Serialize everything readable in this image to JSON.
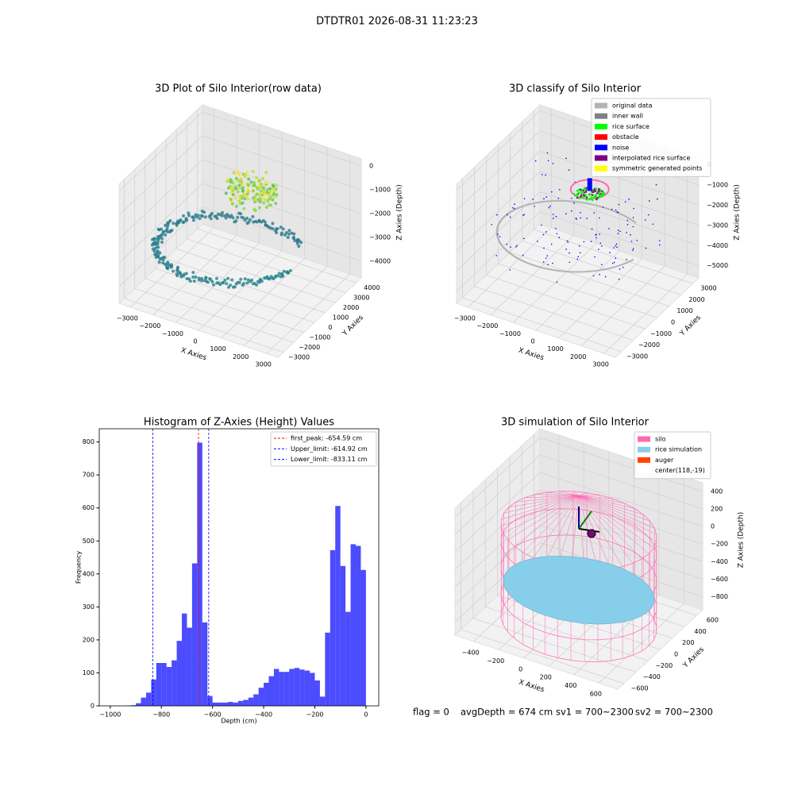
{
  "title": "DTDTR01 2026-08-31 11:23:23",
  "chart_data": [
    {
      "type": "scatter3d",
      "title": "3D Plot of Silo Interior(row data)",
      "xlabel": "X Axies",
      "ylabel": "Y Axies",
      "zlabel": "Z Axies (Depth)",
      "xlim": [
        -3500,
        3500
      ],
      "xticks": [
        {
          "value": -3000,
          "label": "−3000"
        },
        {
          "value": -2000,
          "label": "−2000"
        },
        {
          "value": -1000,
          "label": "−1000"
        },
        0,
        1000,
        2000,
        3000
      ],
      "ylim": [
        -3500,
        4500
      ],
      "yticks": [
        {
          "value": -3000,
          "label": "−3000"
        },
        {
          "value": -2000,
          "label": "−2000"
        },
        {
          "value": -1000,
          "label": "−1000"
        },
        0,
        1000,
        2000,
        3000,
        4000
      ],
      "zlim": [
        -4700,
        300
      ],
      "zticks": [
        {
          "value": -4000,
          "label": "−4000"
        },
        {
          "value": -3000,
          "label": "−3000"
        },
        {
          "value": -2000,
          "label": "−2000"
        },
        {
          "value": -1000,
          "label": "−1000"
        },
        0
      ]
    },
    {
      "type": "classify3d",
      "title": "3D classify of Silo Interior",
      "xlabel": "X Axies",
      "ylabel": "Y Axies",
      "zlabel": "Z Axies (Depth)",
      "xlim": [
        -3500,
        3500
      ],
      "xticks": [
        {
          "value": -3000,
          "label": "−3000"
        },
        {
          "value": -2000,
          "label": "−2000"
        },
        {
          "value": -1000,
          "label": "−1000"
        },
        0,
        1000,
        2000,
        3000
      ],
      "ylim": [
        -3500,
        3500
      ],
      "yticks": [
        {
          "value": -3000,
          "label": "−3000"
        },
        {
          "value": -2000,
          "label": "−2000"
        },
        {
          "value": -1000,
          "label": "−1000"
        },
        0,
        1000,
        2000,
        3000
      ],
      "zlim": [
        -5600,
        300
      ],
      "zticks": [
        {
          "value": -5000,
          "label": "−5000"
        },
        {
          "value": -4000,
          "label": "−4000"
        },
        {
          "value": -3000,
          "label": "−3000"
        },
        {
          "value": -2000,
          "label": "−2000"
        },
        {
          "value": -1000,
          "label": "−1000"
        },
        0
      ],
      "series": [
        {
          "name": "original data",
          "color": "#b3b3b3"
        },
        {
          "name": "inner wall",
          "color": "#808080"
        },
        {
          "name": "rice surface",
          "color": "#00ff00"
        },
        {
          "name": "obstacle",
          "color": "#ff0000"
        },
        {
          "name": "noise",
          "color": "#0000ff"
        },
        {
          "name": "interpolated rice surface",
          "color": "#800080"
        },
        {
          "name": "symmetric generated points",
          "color": "#ffff00"
        }
      ]
    },
    {
      "type": "histogram",
      "title": "Histogram of Z-Axies (Height) Values",
      "xlabel": "Depth (cm)",
      "ylabel": "Frequency",
      "color": "#0000ff",
      "bins": [
        -940,
        -920,
        -900,
        -880,
        -860,
        -840,
        -820,
        -800,
        -780,
        -760,
        -740,
        -720,
        -700,
        -680,
        -660,
        -640,
        -620,
        -600,
        -580,
        -560,
        -540,
        -520,
        -500,
        -480,
        -460,
        -440,
        -420,
        -400,
        -380,
        -360,
        -340,
        -320,
        -300,
        -280,
        -260,
        -240,
        -220,
        -200,
        -180,
        -160,
        -140,
        -120,
        -100,
        -80,
        -60,
        -40,
        -20,
        0
      ],
      "values": [
        1,
        2,
        8,
        25,
        40,
        80,
        130,
        130,
        118,
        138,
        197,
        280,
        237,
        432,
        798,
        253,
        30,
        10,
        10,
        10,
        12,
        10,
        15,
        18,
        25,
        35,
        55,
        70,
        90,
        112,
        103,
        103,
        112,
        115,
        110,
        107,
        100,
        77,
        28,
        222,
        472,
        606,
        424,
        285,
        490,
        485,
        412
      ],
      "xlim": [
        -1043,
        50
      ],
      "xticks": [
        {
          "value": -1000,
          "label": "−1000"
        },
        {
          "value": -800,
          "label": "−800"
        },
        {
          "value": -600,
          "label": "−600"
        },
        {
          "value": -400,
          "label": "−400"
        },
        {
          "value": -200,
          "label": "−200"
        },
        0
      ],
      "ylim": [
        0,
        840
      ],
      "yticks": [
        0,
        100,
        200,
        300,
        400,
        500,
        600,
        700,
        800
      ],
      "lines": [
        {
          "name": "first_peak",
          "value": -654.59,
          "label": "first_peak: -654.59 cm",
          "color": "#ff0000"
        },
        {
          "name": "Upper_limit",
          "value": -614.92,
          "label": "Upper_limit: -614.92 cm",
          "color": "#0000ff"
        },
        {
          "name": "Lower_limit",
          "value": -833.11,
          "label": "Lower_limit: -833.11 cm",
          "color": "#0000ff"
        }
      ]
    },
    {
      "type": "simulation3d",
      "title": "3D simulation of Silo Interior",
      "xlabel": "X Axies",
      "ylabel": "Y Axies",
      "zlabel": "Z Axies (Depth)",
      "xlim": [
        -550,
        750
      ],
      "xticks": [
        {
          "value": -400,
          "label": "−400"
        },
        {
          "value": -200,
          "label": "−200"
        },
        0,
        200,
        400,
        600
      ],
      "ylim": [
        -700,
        700
      ],
      "yticks": [
        {
          "value": -600,
          "label": "−600"
        },
        {
          "value": -400,
          "label": "−400"
        },
        {
          "value": -200,
          "label": "−200"
        },
        0,
        200,
        400,
        600
      ],
      "zlim": [
        -950,
        500
      ],
      "zticks": [
        {
          "value": -800,
          "label": "−800"
        },
        {
          "value": -600,
          "label": "−600"
        },
        {
          "value": -400,
          "label": "−400"
        },
        {
          "value": -200,
          "label": "−200"
        },
        0,
        200,
        400
      ],
      "series": [
        {
          "name": "silo",
          "color": "#ff69b4"
        },
        {
          "name": "rice simulation",
          "color": "#87ceeb"
        },
        {
          "name": "auger",
          "color": "#ff4500"
        },
        {
          "name": "center(118,-19)",
          "color": "#ffffff"
        }
      ]
    }
  ],
  "footer": [
    "flag = 0",
    "avgDepth = 674 cm",
    "sv1 = 700~2300",
    "sv2 = 700~2300"
  ]
}
